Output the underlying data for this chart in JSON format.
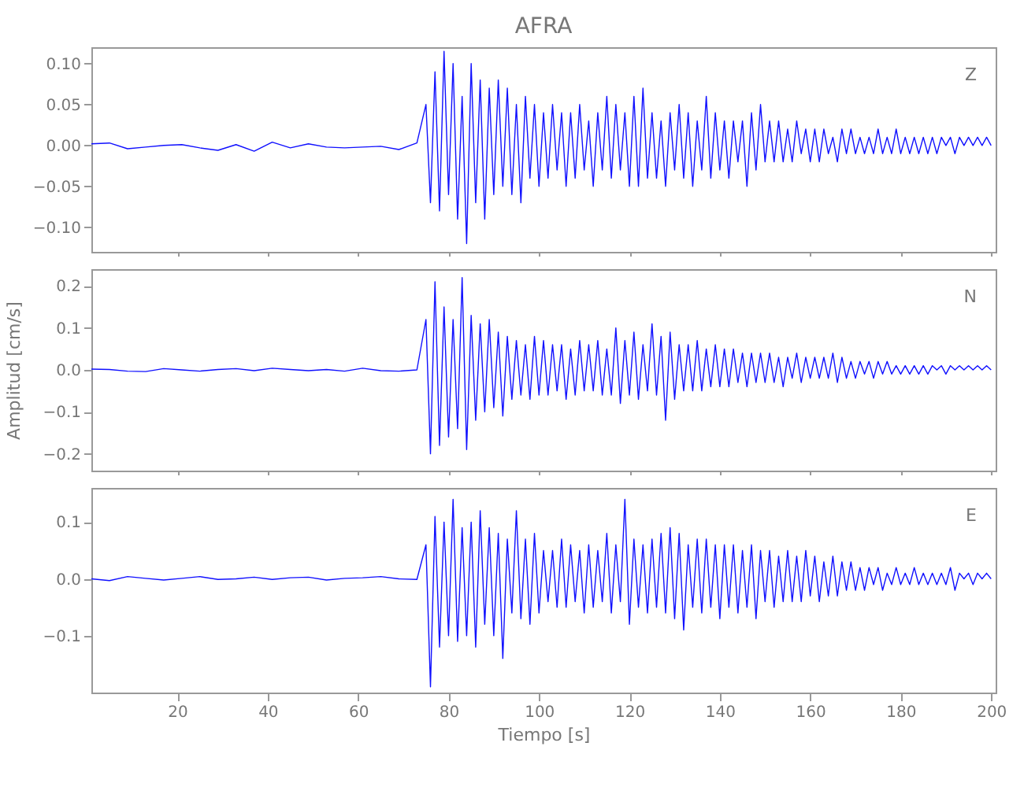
{
  "chart_data": [
    {
      "type": "line",
      "title": "AFRA",
      "annotations": [
        "Z"
      ],
      "tick_labels": "y",
      "xlim": [
        1,
        201
      ],
      "xticks": [
        20,
        40,
        60,
        80,
        100,
        120,
        140,
        160,
        180,
        200
      ],
      "ylim": [
        -0.13,
        0.12
      ],
      "yticks": [
        {
          "value": -0.1,
          "label": "−0.10"
        },
        {
          "value": -0.05,
          "label": "−0.05"
        },
        {
          "value": 0,
          "label": "0.00"
        },
        {
          "value": 0.05,
          "label": "0.05"
        },
        {
          "value": 0.1,
          "label": "0.10"
        }
      ],
      "x": [
        1,
        5,
        9,
        13,
        17,
        21,
        25,
        29,
        33,
        37,
        41,
        45,
        49,
        53,
        57,
        61,
        65,
        69,
        73,
        75,
        76,
        77,
        78,
        79,
        80,
        81,
        82,
        83,
        84,
        85,
        86,
        87,
        88,
        89,
        90,
        91,
        92,
        93,
        94,
        95,
        96,
        97,
        98,
        99,
        100,
        101,
        102,
        103,
        104,
        105,
        106,
        107,
        108,
        109,
        110,
        111,
        112,
        113,
        114,
        115,
        116,
        117,
        118,
        119,
        120,
        121,
        122,
        123,
        124,
        125,
        126,
        127,
        128,
        129,
        130,
        131,
        132,
        133,
        134,
        135,
        136,
        137,
        138,
        139,
        140,
        141,
        142,
        143,
        144,
        145,
        146,
        147,
        148,
        149,
        150,
        151,
        152,
        153,
        154,
        155,
        156,
        157,
        158,
        159,
        160,
        161,
        162,
        163,
        164,
        165,
        166,
        167,
        168,
        169,
        170,
        171,
        172,
        173,
        174,
        175,
        176,
        177,
        178,
        179,
        180,
        181,
        182,
        183,
        184,
        185,
        186,
        187,
        188,
        189,
        190,
        191,
        192,
        193,
        194,
        195,
        196,
        197,
        198,
        199,
        200
      ],
      "series": [
        {
          "color": "#1010ff",
          "values": [
            0.002,
            0.003,
            -0.004,
            -0.002,
            0.0,
            0.001,
            -0.003,
            -0.006,
            0.001,
            -0.007,
            0.004,
            -0.003,
            0.002,
            -0.002,
            -0.003,
            -0.002,
            -0.001,
            -0.005,
            0.003,
            0.05,
            -0.07,
            0.09,
            -0.08,
            0.115,
            -0.06,
            0.1,
            -0.09,
            0.06,
            -0.12,
            0.1,
            -0.07,
            0.08,
            -0.09,
            0.07,
            -0.06,
            0.08,
            -0.05,
            0.07,
            -0.06,
            0.05,
            -0.07,
            0.06,
            -0.04,
            0.05,
            -0.05,
            0.04,
            -0.04,
            0.05,
            -0.03,
            0.04,
            -0.05,
            0.04,
            -0.04,
            0.05,
            -0.03,
            0.03,
            -0.05,
            0.04,
            -0.03,
            0.06,
            -0.04,
            0.05,
            -0.03,
            0.04,
            -0.05,
            0.06,
            -0.05,
            0.07,
            -0.04,
            0.04,
            -0.04,
            0.03,
            -0.05,
            0.04,
            -0.03,
            0.05,
            -0.04,
            0.04,
            -0.05,
            0.03,
            -0.03,
            0.06,
            -0.04,
            0.04,
            -0.03,
            0.03,
            -0.04,
            0.03,
            -0.02,
            0.03,
            -0.05,
            0.04,
            -0.03,
            0.05,
            -0.02,
            0.03,
            -0.02,
            0.03,
            -0.02,
            0.02,
            -0.02,
            0.03,
            -0.01,
            0.02,
            -0.02,
            0.02,
            -0.02,
            0.02,
            -0.01,
            0.01,
            -0.02,
            0.02,
            -0.01,
            0.02,
            -0.01,
            0.01,
            -0.01,
            0.01,
            -0.01,
            0.02,
            -0.01,
            0.01,
            -0.01,
            0.02,
            -0.01,
            0.01,
            -0.01,
            0.01,
            -0.01,
            0.01,
            -0.01,
            0.01,
            -0.01,
            0.01,
            0.0,
            0.01,
            -0.01,
            0.01,
            0.0,
            0.01,
            0.0,
            0.01,
            0.0,
            0.01,
            0.0
          ]
        }
      ]
    },
    {
      "type": "line",
      "ylabel": "Amplitud [cm/s]",
      "annotations": [
        "N"
      ],
      "tick_labels": "y",
      "xlim": [
        1,
        201
      ],
      "xticks": [
        20,
        40,
        60,
        80,
        100,
        120,
        140,
        160,
        180,
        200
      ],
      "ylim": [
        -0.24,
        0.24
      ],
      "yticks": [
        {
          "value": -0.2,
          "label": "−0.2"
        },
        {
          "value": -0.1,
          "label": "−0.1"
        },
        {
          "value": 0,
          "label": "0.0"
        },
        {
          "value": 0.1,
          "label": "0.1"
        },
        {
          "value": 0.2,
          "label": "0.2"
        }
      ],
      "x": [
        1,
        5,
        9,
        13,
        17,
        21,
        25,
        29,
        33,
        37,
        41,
        45,
        49,
        53,
        57,
        61,
        65,
        69,
        73,
        75,
        76,
        77,
        78,
        79,
        80,
        81,
        82,
        83,
        84,
        85,
        86,
        87,
        88,
        89,
        90,
        91,
        92,
        93,
        94,
        95,
        96,
        97,
        98,
        99,
        100,
        101,
        102,
        103,
        104,
        105,
        106,
        107,
        108,
        109,
        110,
        111,
        112,
        113,
        114,
        115,
        116,
        117,
        118,
        119,
        120,
        121,
        122,
        123,
        124,
        125,
        126,
        127,
        128,
        129,
        130,
        131,
        132,
        133,
        134,
        135,
        136,
        137,
        138,
        139,
        140,
        141,
        142,
        143,
        144,
        145,
        146,
        147,
        148,
        149,
        150,
        151,
        152,
        153,
        154,
        155,
        156,
        157,
        158,
        159,
        160,
        161,
        162,
        163,
        164,
        165,
        166,
        167,
        168,
        169,
        170,
        171,
        172,
        173,
        174,
        175,
        176,
        177,
        178,
        179,
        180,
        181,
        182,
        183,
        184,
        185,
        186,
        187,
        188,
        189,
        190,
        191,
        192,
        193,
        194,
        195,
        196,
        197,
        198,
        199,
        200
      ],
      "series": [
        {
          "color": "#1010ff",
          "values": [
            0.002,
            0.001,
            -0.003,
            -0.004,
            0.003,
            0.0,
            -0.003,
            0.001,
            0.003,
            -0.002,
            0.004,
            0.001,
            -0.002,
            0.001,
            -0.003,
            0.004,
            -0.002,
            -0.003,
            0.0,
            0.12,
            -0.2,
            0.21,
            -0.18,
            0.15,
            -0.16,
            0.12,
            -0.14,
            0.22,
            -0.19,
            0.13,
            -0.12,
            0.11,
            -0.1,
            0.12,
            -0.09,
            0.09,
            -0.11,
            0.08,
            -0.07,
            0.07,
            -0.06,
            0.06,
            -0.07,
            0.08,
            -0.06,
            0.07,
            -0.06,
            0.06,
            -0.05,
            0.06,
            -0.07,
            0.05,
            -0.06,
            0.07,
            -0.05,
            0.06,
            -0.05,
            0.07,
            -0.06,
            0.05,
            -0.06,
            0.1,
            -0.08,
            0.07,
            -0.06,
            0.09,
            -0.07,
            0.06,
            -0.05,
            0.11,
            -0.06,
            0.08,
            -0.12,
            0.09,
            -0.07,
            0.06,
            -0.05,
            0.06,
            -0.05,
            0.07,
            -0.05,
            0.05,
            -0.04,
            0.06,
            -0.04,
            0.05,
            -0.04,
            0.05,
            -0.03,
            0.04,
            -0.04,
            0.04,
            -0.03,
            0.04,
            -0.03,
            0.04,
            -0.03,
            0.03,
            -0.04,
            0.03,
            -0.02,
            0.04,
            -0.03,
            0.03,
            -0.02,
            0.03,
            -0.02,
            0.03,
            -0.02,
            0.04,
            -0.03,
            0.03,
            -0.02,
            0.02,
            -0.02,
            0.02,
            -0.01,
            0.02,
            -0.02,
            0.02,
            -0.01,
            0.02,
            -0.01,
            0.01,
            -0.01,
            0.01,
            -0.01,
            0.01,
            -0.01,
            0.01,
            -0.01,
            0.01,
            0.0,
            0.01,
            -0.01,
            0.01,
            0.0,
            0.01,
            0.0,
            0.01,
            0.0,
            0.01,
            0.0,
            0.01,
            0.0
          ]
        }
      ]
    },
    {
      "type": "line",
      "xlabel": "Tiempo [s]",
      "annotations": [
        "E"
      ],
      "xlim": [
        1,
        201
      ],
      "xticks": [
        20,
        40,
        60,
        80,
        100,
        120,
        140,
        160,
        180,
        200
      ],
      "ylim": [
        -0.2,
        0.16
      ],
      "yticks": [
        {
          "value": -0.1,
          "label": "−0.1"
        },
        {
          "value": 0,
          "label": "0.0"
        },
        {
          "value": 0.1,
          "label": "0.1"
        }
      ],
      "x": [
        1,
        5,
        9,
        13,
        17,
        21,
        25,
        29,
        33,
        37,
        41,
        45,
        49,
        53,
        57,
        61,
        65,
        69,
        73,
        75,
        76,
        77,
        78,
        79,
        80,
        81,
        82,
        83,
        84,
        85,
        86,
        87,
        88,
        89,
        90,
        91,
        92,
        93,
        94,
        95,
        96,
        97,
        98,
        99,
        100,
        101,
        102,
        103,
        104,
        105,
        106,
        107,
        108,
        109,
        110,
        111,
        112,
        113,
        114,
        115,
        116,
        117,
        118,
        119,
        120,
        121,
        122,
        123,
        124,
        125,
        126,
        127,
        128,
        129,
        130,
        131,
        132,
        133,
        134,
        135,
        136,
        137,
        138,
        139,
        140,
        141,
        142,
        143,
        144,
        145,
        146,
        147,
        148,
        149,
        150,
        151,
        152,
        153,
        154,
        155,
        156,
        157,
        158,
        159,
        160,
        161,
        162,
        163,
        164,
        165,
        166,
        167,
        168,
        169,
        170,
        171,
        172,
        173,
        174,
        175,
        176,
        177,
        178,
        179,
        180,
        181,
        182,
        183,
        184,
        185,
        186,
        187,
        188,
        189,
        190,
        191,
        192,
        193,
        194,
        195,
        196,
        197,
        198,
        199,
        200
      ],
      "series": [
        {
          "color": "#1010ff",
          "values": [
            0.0,
            -0.003,
            0.004,
            0.001,
            -0.002,
            0.001,
            0.004,
            -0.001,
            0.0,
            0.003,
            -0.001,
            0.002,
            0.003,
            -0.002,
            0.001,
            0.002,
            0.004,
            0.0,
            -0.001,
            0.06,
            -0.19,
            0.11,
            -0.12,
            0.1,
            -0.1,
            0.14,
            -0.11,
            0.09,
            -0.1,
            0.1,
            -0.12,
            0.12,
            -0.08,
            0.09,
            -0.1,
            0.08,
            -0.14,
            0.07,
            -0.06,
            0.12,
            -0.07,
            0.07,
            -0.08,
            0.08,
            -0.06,
            0.05,
            -0.04,
            0.05,
            -0.05,
            0.07,
            -0.05,
            0.06,
            -0.04,
            0.05,
            -0.06,
            0.06,
            -0.05,
            0.05,
            -0.04,
            0.08,
            -0.06,
            0.06,
            -0.04,
            0.14,
            -0.08,
            0.07,
            -0.05,
            0.06,
            -0.06,
            0.07,
            -0.05,
            0.08,
            -0.06,
            0.09,
            -0.07,
            0.08,
            -0.09,
            0.06,
            -0.05,
            0.07,
            -0.06,
            0.07,
            -0.05,
            0.06,
            -0.07,
            0.06,
            -0.05,
            0.06,
            -0.06,
            0.05,
            -0.05,
            0.06,
            -0.07,
            0.05,
            -0.04,
            0.05,
            -0.05,
            0.04,
            -0.04,
            0.05,
            -0.04,
            0.04,
            -0.04,
            0.05,
            -0.03,
            0.04,
            -0.04,
            0.03,
            -0.03,
            0.04,
            -0.03,
            0.03,
            -0.02,
            0.03,
            -0.02,
            0.02,
            -0.02,
            0.02,
            -0.01,
            0.02,
            -0.02,
            0.01,
            -0.01,
            0.02,
            -0.01,
            0.01,
            -0.01,
            0.02,
            -0.01,
            0.01,
            -0.01,
            0.01,
            -0.01,
            0.01,
            -0.01,
            0.02,
            -0.02,
            0.01,
            0.0,
            0.01,
            -0.01,
            0.01,
            0.0,
            0.01,
            0.0
          ]
        }
      ]
    }
  ]
}
